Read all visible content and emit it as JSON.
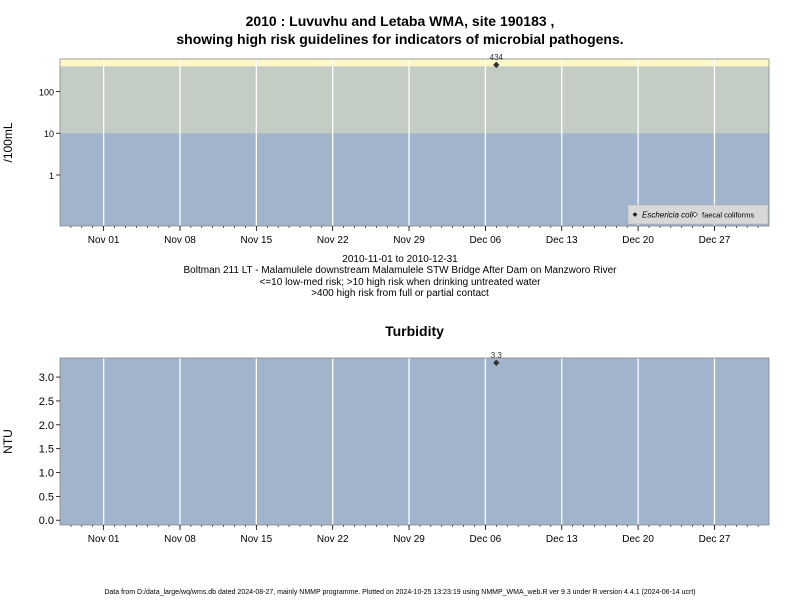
{
  "header": {
    "title_line1": "2010 : Luvuvhu and Letaba WMA, site 190183 ,",
    "title_line2": "showing high risk guidelines for indicators of microbial pathogens."
  },
  "subtitle": {
    "date_range": "2010-11-01 to 2010-12-31",
    "site_desc": "Boltman 211 LT - Malamulele downstream Malamulele STW Bridge After Dam on Manzworo River",
    "risk_line1": "<=10 low-med risk; >10 high risk when drinking untreated water",
    "risk_line2": ">400 high risk from full or partial contact"
  },
  "footer": "Data from D:/data_large/wq/wms.db dated 2024-08-27, mainly NMMP programme. Plotted on 2024-10-25 13:23:19 using NMMP_WMA_web.R ver 9.3 under R version 4.4.1 (2024-06-14 ucrt)",
  "colors": {
    "low_band": "#a2b4cc",
    "mid_band": "#c3cdc3",
    "high_band": "#fdf8c8",
    "grid": "#ffffff",
    "point": "#333333"
  },
  "chart_data": [
    {
      "type": "scatter",
      "title": "",
      "ylabel": "/100mL",
      "yscale": "log",
      "x_range": [
        "2010-10-28",
        "2011-01-01"
      ],
      "y_ticks": [
        1,
        10,
        100
      ],
      "y_tick_labels": [
        "1",
        "10",
        "100"
      ],
      "x_ticks": [
        "2010-11-01",
        "2010-11-08",
        "2010-11-15",
        "2010-11-22",
        "2010-11-29",
        "2010-12-06",
        "2010-12-13",
        "2010-12-20",
        "2010-12-27"
      ],
      "x_tick_labels": [
        "Nov 01",
        "Nov 08",
        "Nov 15",
        "Nov 22",
        "Nov 29",
        "Dec 06",
        "Dec 13",
        "Dec 20",
        "Dec 27"
      ],
      "bands": [
        {
          "from": 0,
          "to": 10,
          "color": "#a2b4cc"
        },
        {
          "from": 10,
          "to": 400,
          "color": "#c3cdc3"
        },
        {
          "from": 400,
          "to": 10000,
          "color": "#fdf8c8"
        }
      ],
      "series": [
        {
          "name": "Eschericia coli",
          "points": [
            {
              "x": "2010-12-07",
              "y": 434,
              "label": "434"
            }
          ]
        },
        {
          "name": "faecal coliforms",
          "points": []
        }
      ],
      "legend": "bottom-right",
      "grid": true
    },
    {
      "type": "scatter",
      "title": "Turbidity",
      "ylabel": "NTU",
      "yscale": "linear",
      "x_range": [
        "2010-10-28",
        "2011-01-01"
      ],
      "ylim": [
        -0.1,
        3.4
      ],
      "y_ticks": [
        0,
        0.5,
        1,
        1.5,
        2,
        2.5,
        3
      ],
      "y_tick_labels": [
        "0.0",
        "0.5",
        "1.0",
        "1.5",
        "2.0",
        "2.5",
        "3.0"
      ],
      "x_ticks": [
        "2010-11-01",
        "2010-11-08",
        "2010-11-15",
        "2010-11-22",
        "2010-11-29",
        "2010-12-06",
        "2010-12-13",
        "2010-12-20",
        "2010-12-27"
      ],
      "x_tick_labels": [
        "Nov 01",
        "Nov 08",
        "Nov 15",
        "Nov 22",
        "Nov 29",
        "Dec 06",
        "Dec 13",
        "Dec 20",
        "Dec 27"
      ],
      "series": [
        {
          "points": [
            {
              "x": "2010-12-07",
              "y": 3.3,
              "label": "3.3"
            }
          ]
        }
      ],
      "grid": true
    }
  ]
}
